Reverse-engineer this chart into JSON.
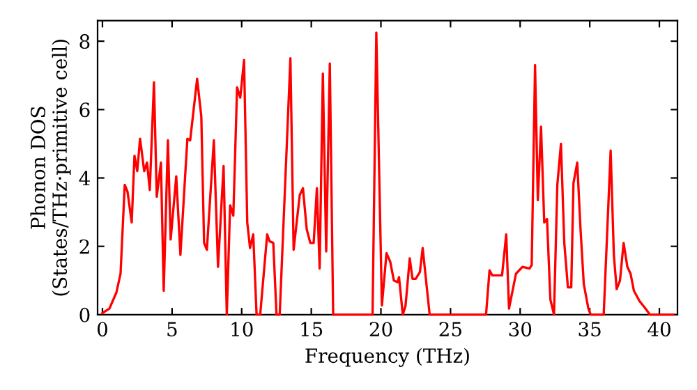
{
  "chart_data": {
    "type": "line",
    "xlabel": "Frequency (THz)",
    "ylabel": "Phonon DOS\n(States/THz·primitive cell)",
    "series": [
      {
        "color": "#ff0000",
        "x": [
          0,
          0.5,
          1.0,
          1.3,
          1.6,
          1.8,
          2.1,
          2.3,
          2.5,
          2.7,
          3.0,
          3.2,
          3.4,
          3.7,
          3.9,
          4.2,
          4.4,
          4.7,
          4.9,
          5.3,
          5.6,
          6.1,
          6.3,
          6.8,
          7.1,
          7.3,
          7.5,
          8.0,
          8.3,
          8.7,
          8.93,
          9.17,
          9.4,
          9.67,
          9.9,
          10.17,
          10.4,
          10.6,
          10.83,
          11.07,
          11.33,
          11.83,
          12.0,
          12.27,
          12.5,
          12.73,
          13.5,
          13.73,
          14.17,
          14.4,
          14.67,
          14.93,
          15.17,
          15.4,
          15.6,
          15.83,
          16.07,
          16.33,
          16.57,
          19.4,
          19.67,
          20.07,
          20.4,
          20.67,
          20.93,
          21.2,
          21.3,
          21.57,
          21.77,
          22.07,
          22.27,
          22.5,
          22.8,
          23.0,
          23.5,
          27.55,
          27.8,
          28.0,
          28.7,
          29.0,
          29.2,
          29.7,
          30.17,
          30.67,
          30.83,
          31.07,
          31.27,
          31.5,
          31.73,
          31.93,
          32.17,
          32.43,
          32.67,
          32.93,
          33.17,
          33.43,
          33.67,
          33.83,
          34.1,
          34.33,
          34.57,
          34.9,
          35.07,
          36.0,
          36.5,
          36.73,
          36.93,
          37.17,
          37.43,
          37.7,
          37.93,
          38.17,
          38.57,
          39.0,
          39.33,
          41.0
        ],
        "values": [
          0.05,
          0.18,
          0.65,
          1.2,
          3.8,
          3.6,
          2.7,
          4.65,
          4.2,
          5.15,
          4.2,
          4.45,
          3.65,
          6.8,
          3.45,
          4.45,
          0.7,
          5.1,
          2.2,
          4.05,
          1.75,
          5.15,
          5.1,
          6.9,
          5.8,
          2.1,
          1.9,
          5.1,
          1.4,
          4.35,
          0,
          3.2,
          2.9,
          6.65,
          6.35,
          7.45,
          2.7,
          1.95,
          2.35,
          0,
          0,
          2.35,
          2.15,
          2.1,
          0,
          0,
          7.5,
          1.9,
          3.5,
          3.7,
          2.5,
          2.1,
          2.1,
          3.7,
          1.35,
          7.05,
          1.85,
          7.35,
          0,
          0,
          8.25,
          0.27,
          1.8,
          1.55,
          1.0,
          0.95,
          1.1,
          0,
          0.27,
          1.65,
          1.05,
          1.05,
          1.25,
          1.95,
          0,
          0,
          1.3,
          1.15,
          1.15,
          2.35,
          0.18,
          1.2,
          1.4,
          1.35,
          1.45,
          7.3,
          3.35,
          5.5,
          2.7,
          2.8,
          0.45,
          0,
          3.8,
          5.0,
          2.1,
          0.8,
          0.8,
          3.85,
          4.45,
          2.55,
          0.9,
          0.18,
          0,
          0,
          4.8,
          1.75,
          0.75,
          1.0,
          2.1,
          1.4,
          1.2,
          0.7,
          0.4,
          0.18,
          0,
          0
        ]
      }
    ],
    "xlim": [
      -0.35,
      41.3
    ],
    "ylim": [
      0,
      8.6
    ],
    "xticks": [
      0,
      5,
      10,
      15,
      20,
      25,
      30,
      35,
      40
    ],
    "yticks": [
      0,
      2,
      4,
      6,
      8
    ],
    "grid": false,
    "legend": false,
    "marker": "none",
    "line_style": "solid"
  }
}
